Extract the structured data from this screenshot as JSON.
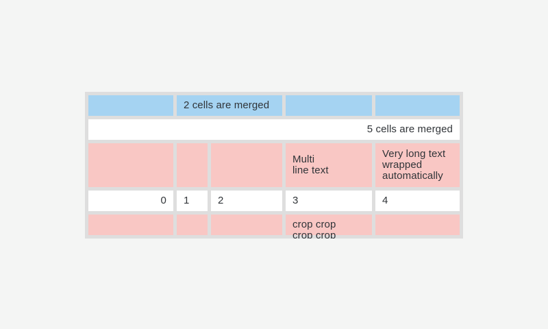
{
  "colors": {
    "page_bg": "#f4f5f4",
    "table_frame": "#dedede",
    "header_blue": "#a5d3f2",
    "row_pink": "#f9c7c4",
    "cell_white": "#ffffff",
    "text_color": "#303438"
  },
  "table": {
    "rows": [
      {
        "name": "header-row",
        "cells": [
          {
            "text": ""
          },
          {
            "text": "2 cells are merged"
          },
          {
            "text": ""
          },
          {
            "text": ""
          }
        ]
      },
      {
        "name": "merged-five-row",
        "cells": [
          {
            "text": "5 cells are merged"
          }
        ]
      },
      {
        "name": "multiline-row",
        "cells": [
          {
            "text": ""
          },
          {
            "text": ""
          },
          {
            "text": ""
          },
          {
            "text": "Multi\nline text"
          },
          {
            "text": "Very long text\nwrapped\nautomatically"
          }
        ]
      },
      {
        "name": "numbers-row",
        "cells": [
          {
            "text": "0"
          },
          {
            "text": "1"
          },
          {
            "text": "2"
          },
          {
            "text": "3"
          },
          {
            "text": "4"
          }
        ]
      },
      {
        "name": "crop-row",
        "cells": [
          {
            "text": ""
          },
          {
            "text": ""
          },
          {
            "text": ""
          },
          {
            "text": "crop crop\ncrop crop"
          },
          {
            "text": ""
          }
        ]
      }
    ]
  }
}
